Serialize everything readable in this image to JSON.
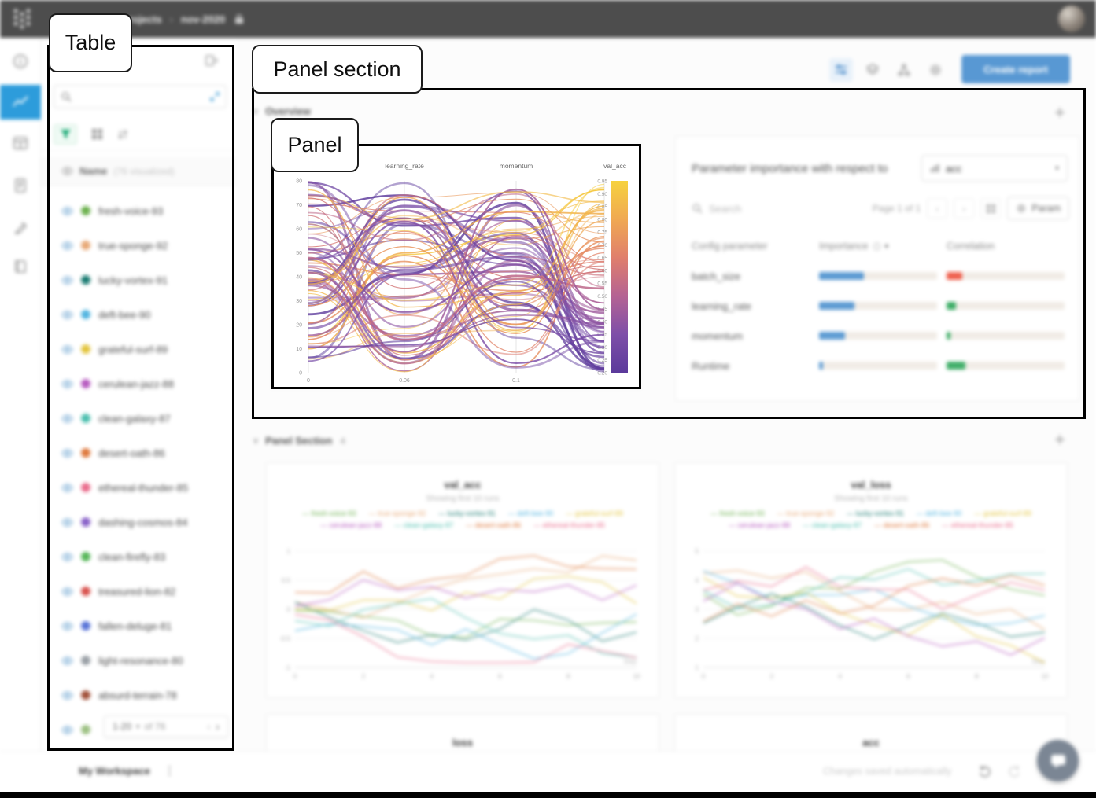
{
  "glyphs": {
    "chevron_down": "∨",
    "chevron_right": "›",
    "chevron_left": "‹",
    "caret_down": "▾",
    "plus": "+",
    "kebab": "⋮",
    "dash": "—"
  },
  "annotations": {
    "table": "Table",
    "panel_section": "Panel section",
    "panel": "Panel"
  },
  "topbar": {
    "breadcrumb_project": "projects",
    "separator": "›",
    "breadcrumb_run": "nov-2020"
  },
  "toolbar": {
    "create_report": "Create report"
  },
  "runs_panel": {
    "name_header": "Name",
    "visualized_label": "(76 visualized)",
    "pagination": {
      "range": "1-20",
      "of": "of 76"
    },
    "runs": [
      {
        "name": "fresh-voice-93",
        "color": "#6cb14e"
      },
      {
        "name": "true-sponge-92",
        "color": "#e8a977"
      },
      {
        "name": "lucky-vortex-91",
        "color": "#1d7d74"
      },
      {
        "name": "deft-bee-90",
        "color": "#53b5e0"
      },
      {
        "name": "grateful-surf-89",
        "color": "#e3c53f"
      },
      {
        "name": "cerulean-jazz-88",
        "color": "#b75bc0"
      },
      {
        "name": "clean-galaxy-87",
        "color": "#4fc0b0"
      },
      {
        "name": "desert-oath-86",
        "color": "#df7a3f"
      },
      {
        "name": "ethereal-thunder-85",
        "color": "#ea6d8d"
      },
      {
        "name": "dashing-cosmos-84",
        "color": "#8a63c9"
      },
      {
        "name": "clean-firefly-83",
        "color": "#57b75a"
      },
      {
        "name": "treasured-lion-82",
        "color": "#d9534f"
      },
      {
        "name": "fallen-deluge-81",
        "color": "#5b76d8"
      },
      {
        "name": "light-resonance-80",
        "color": "#9aa0a6"
      },
      {
        "name": "absurd-terrain-78",
        "color": "#a3543d"
      },
      {
        "name": "",
        "color": "#9dc183"
      }
    ]
  },
  "sections": [
    {
      "title": "Overview"
    },
    {
      "title": "Panel Section",
      "count": "4"
    }
  ],
  "importance_panel": {
    "title": "Parameter importance with respect to",
    "metric": "acc",
    "search_placeholder": "Search",
    "page_label": "Page 1 of 1",
    "params_button": "Param",
    "columns": {
      "parameter": "Config parameter",
      "importance": "Importance",
      "correlation": "Correlation"
    },
    "rows": [
      {
        "name": "batch_size",
        "importance": 0.38,
        "correlation": 0.13,
        "sign": "neg"
      },
      {
        "name": "learning_rate",
        "importance": 0.3,
        "correlation": 0.08,
        "sign": "pos"
      },
      {
        "name": "momentum",
        "importance": 0.22,
        "correlation": 0.03,
        "sign": "pos"
      },
      {
        "name": "Runtime",
        "importance": 0.03,
        "correlation": 0.16,
        "sign": "pos"
      }
    ]
  },
  "parallel_panel": {
    "axis_titles": [
      "learning_rate",
      "momentum",
      "val_acc"
    ],
    "left_ticks": [
      "80",
      "70",
      "60",
      "50",
      "40",
      "30",
      "20",
      "10",
      "0"
    ],
    "colorbar_ticks": [
      "0.95",
      "0.90",
      "0.85",
      "0.80",
      "0.75",
      "0.70",
      "0.65",
      "0.60",
      "0.55",
      "0.50",
      "0.45",
      "0.40",
      "0.35",
      "0.30",
      "0.25",
      "0.20"
    ],
    "bottom_labels": [
      "0",
      "0.06",
      "0.1"
    ],
    "colormap": [
      "#5b3a9b",
      "#7e4fa8",
      "#b56393",
      "#e07f6c",
      "#f0a952",
      "#f6d23e"
    ]
  },
  "charts_section": {
    "charts": [
      {
        "title": "val_acc",
        "subtitle": "Showing first 10 runs",
        "x_label": "Step",
        "x_ticks": [
          "0",
          "2",
          "4",
          "6",
          "8",
          "10"
        ],
        "y_ticks": [
          "1",
          "0.5",
          "0",
          "-0.5",
          "-1"
        ]
      },
      {
        "title": "val_loss",
        "subtitle": "Showing first 10 runs",
        "x_label": "Step",
        "x_ticks": [
          "0",
          "2",
          "4",
          "6",
          "8",
          "10"
        ],
        "y_ticks": [
          "5",
          "4",
          "3",
          "2",
          "1"
        ]
      }
    ],
    "partial_charts": [
      {
        "title": "loss"
      },
      {
        "title": "acc"
      }
    ]
  },
  "footer": {
    "workspace": "My Workspace",
    "autosave": "Changes saved automatically"
  },
  "colors": {
    "accent_blue": "#2d9cdb",
    "button_blue": "#5898d3",
    "importance_bar": "#5d9bd3",
    "corr_pos": "#3fae68",
    "corr_neg": "#ef6351"
  }
}
